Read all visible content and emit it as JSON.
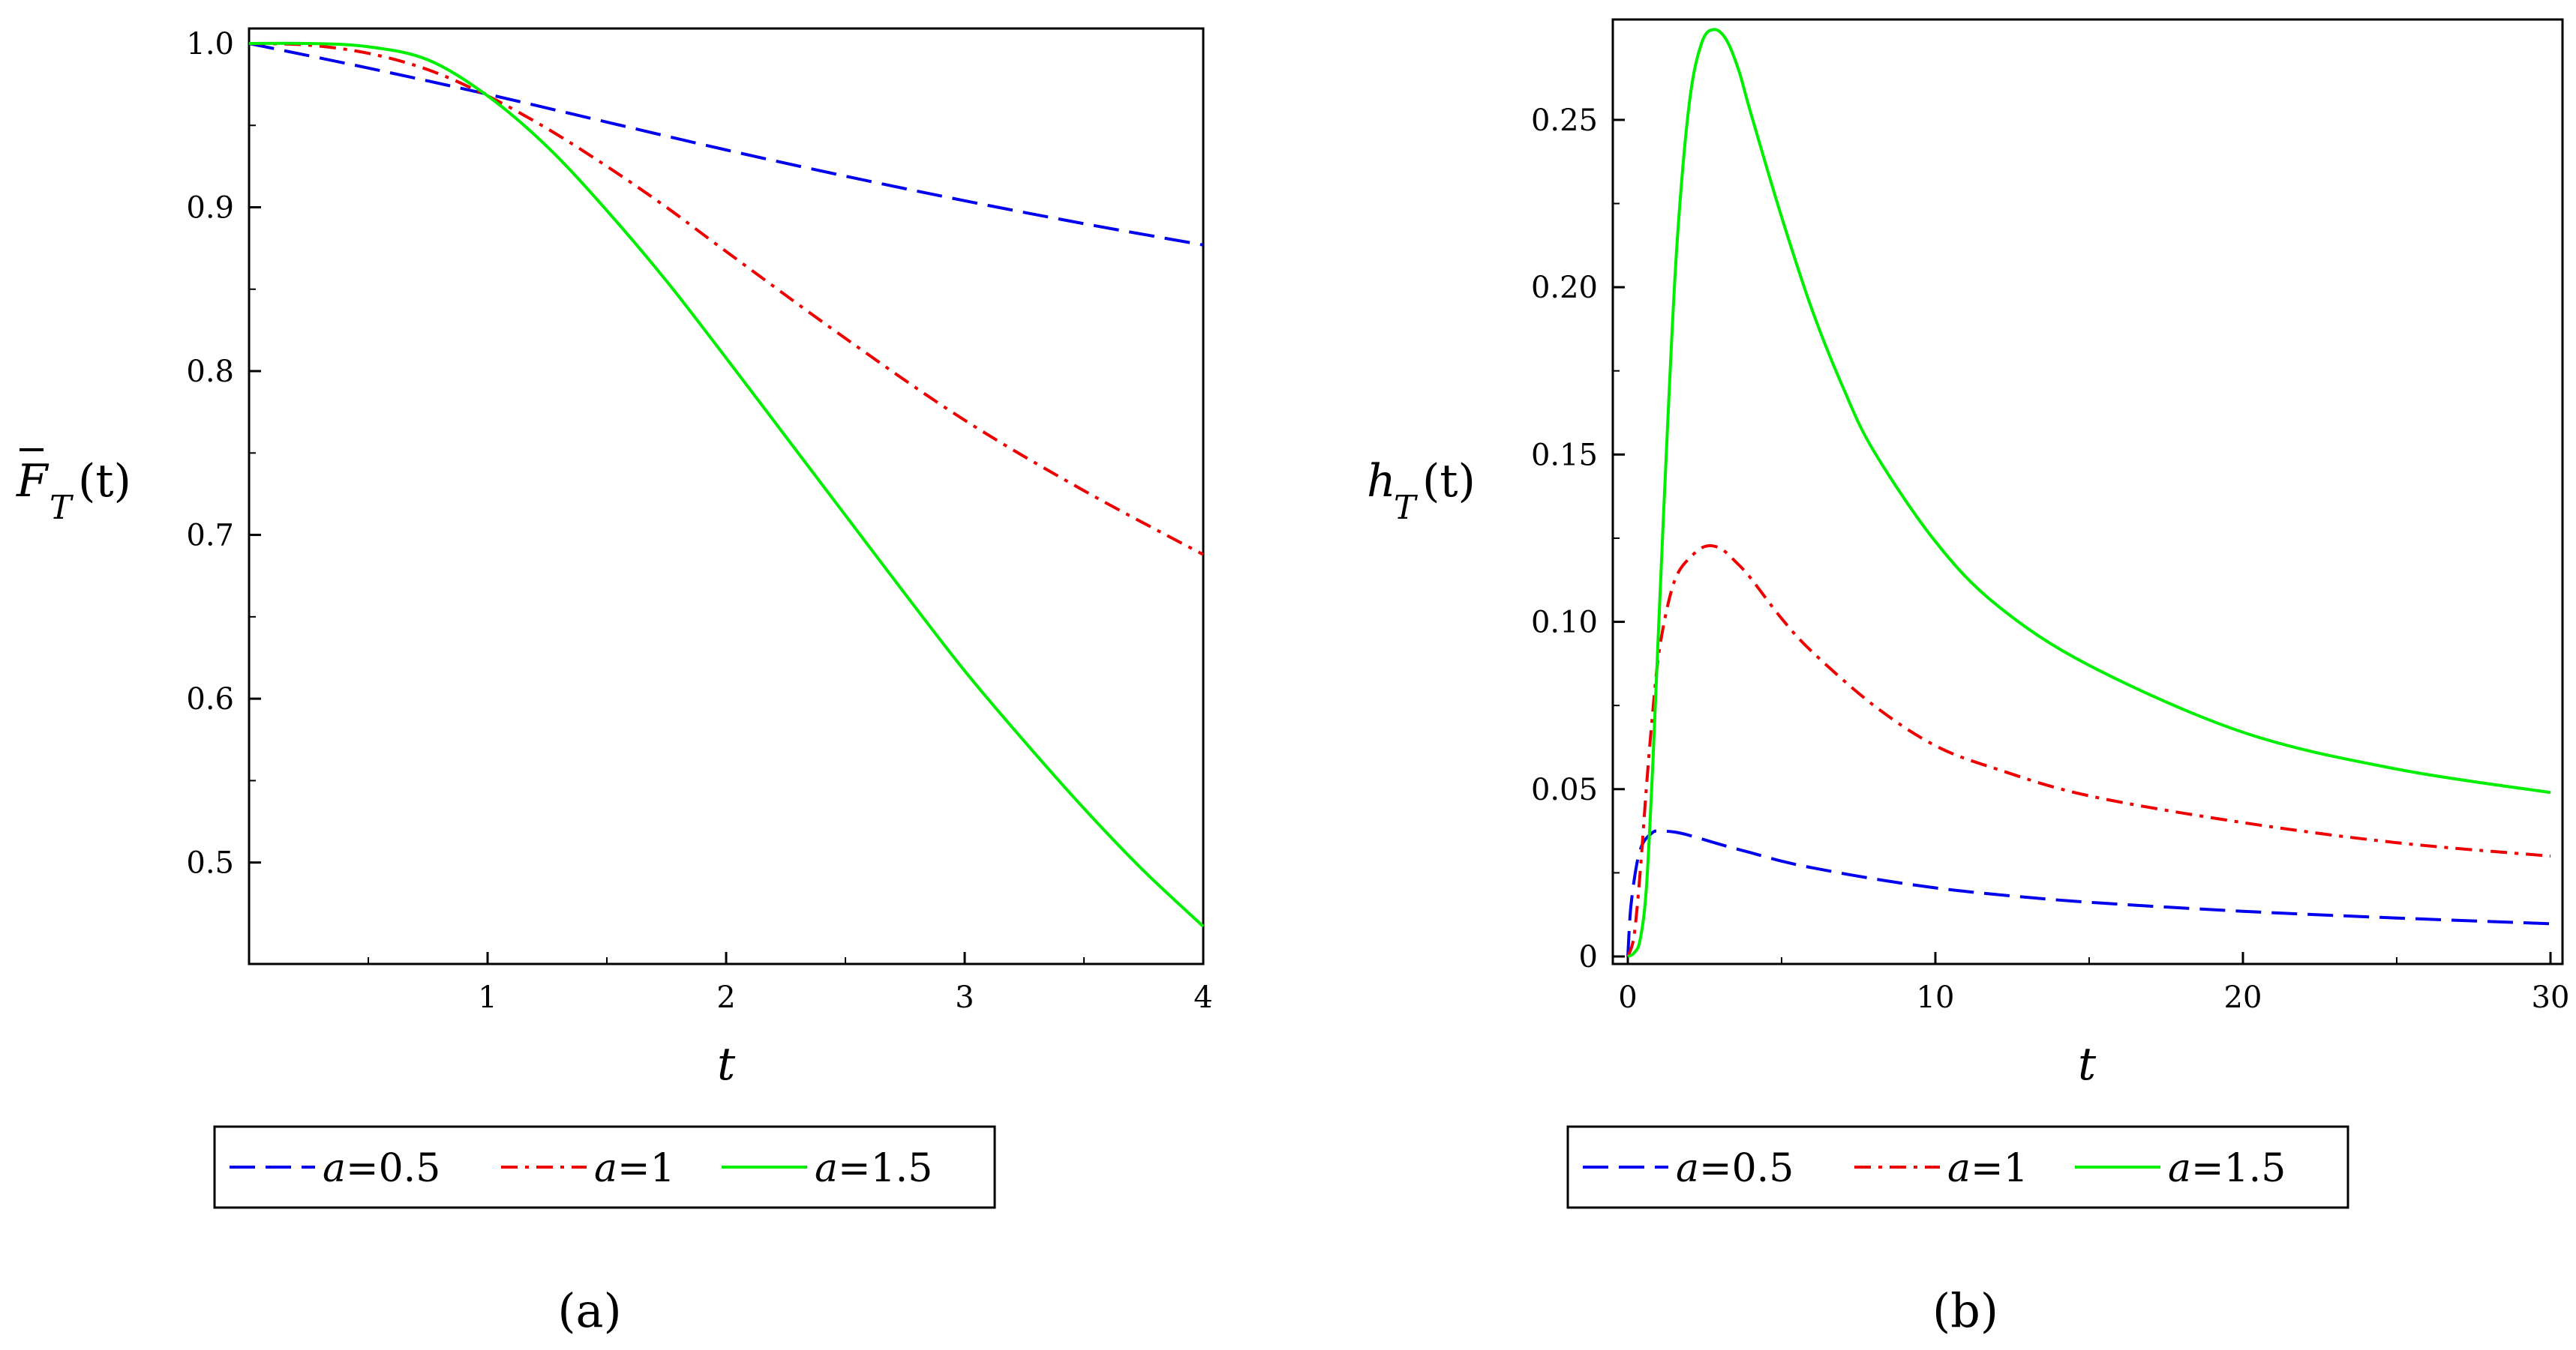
{
  "chart_data": [
    {
      "type": "line",
      "panel_label": "(a)",
      "xlabel": "t",
      "ylabel": {
        "prefix": "F",
        "subscript": "T",
        "suffix": "(t)"
      },
      "xlim": [
        0,
        4
      ],
      "ylim": [
        0.455,
        1.0
      ],
      "xticks": [
        1,
        2,
        3,
        4
      ],
      "yticks": [
        0.5,
        0.6,
        0.7,
        0.8,
        0.9,
        1.0
      ],
      "ytick_labels": [
        "0.5",
        "0.6",
        "0.7",
        "0.8",
        "0.9",
        "1.0"
      ],
      "series": [
        {
          "name": "a=0.5",
          "a_label": "a",
          "value_label": "=0.5",
          "color": "#0000ee",
          "dash": "dashed",
          "x": [
            0,
            0.5,
            1,
            1.5,
            2,
            2.5,
            3,
            3.5,
            4
          ],
          "y": [
            1.0,
            0.985,
            0.969,
            0.952,
            0.935,
            0.919,
            0.904,
            0.89,
            0.877
          ]
        },
        {
          "name": "a=1",
          "a_label": "a",
          "value_label": "=1",
          "color": "#ee0000",
          "dash": "dashdot",
          "x": [
            0,
            0.25,
            0.5,
            0.75,
            1,
            1.25,
            1.5,
            1.75,
            2,
            2.5,
            3,
            3.5,
            4
          ],
          "y": [
            1.0,
            0.999,
            0.994,
            0.984,
            0.968,
            0.948,
            0.925,
            0.9,
            0.873,
            0.82,
            0.77,
            0.727,
            0.688
          ]
        },
        {
          "name": "a=1.5",
          "a_label": "a",
          "value_label": "=1.5",
          "color": "#00ee00",
          "dash": "solid",
          "x": [
            0,
            0.25,
            0.5,
            0.75,
            1,
            1.25,
            1.5,
            1.75,
            2,
            2.25,
            2.5,
            2.75,
            3,
            3.25,
            3.5,
            3.75,
            4
          ],
          "y": [
            1.0,
            1.0,
            0.998,
            0.99,
            0.968,
            0.937,
            0.898,
            0.855,
            0.808,
            0.76,
            0.712,
            0.664,
            0.617,
            0.574,
            0.533,
            0.495,
            0.461
          ]
        }
      ]
    },
    {
      "type": "line",
      "panel_label": "(b)",
      "xlabel": "t",
      "ylabel": {
        "prefix": "h",
        "subscript": "T",
        "suffix": "(t)"
      },
      "xlim": [
        0,
        30
      ],
      "ylim": [
        0,
        0.28
      ],
      "xticks": [
        0,
        10,
        20,
        30
      ],
      "yticks": [
        0,
        0.05,
        0.1,
        0.15,
        0.2,
        0.25
      ],
      "ytick_labels": [
        "0",
        "0.05",
        "0.10",
        "0.15",
        "0.20",
        "0.25"
      ],
      "series": [
        {
          "name": "a=0.5",
          "a_label": "a",
          "value_label": "=0.5",
          "color": "#0000ee",
          "dash": "dashed",
          "x": [
            0,
            0.1,
            0.3,
            0.5,
            0.8,
            1,
            1.5,
            2,
            3,
            4,
            5,
            6,
            8,
            10,
            12,
            15,
            20,
            25,
            30
          ],
          "y": [
            0,
            0.015,
            0.028,
            0.034,
            0.037,
            0.0375,
            0.0372,
            0.0362,
            0.0335,
            0.031,
            0.0285,
            0.0265,
            0.0232,
            0.0205,
            0.0185,
            0.0162,
            0.0135,
            0.0115,
            0.0098
          ]
        },
        {
          "name": "a=1",
          "a_label": "a",
          "value_label": "=1",
          "color": "#ee0000",
          "dash": "dashdot",
          "x": [
            0,
            0.2,
            0.4,
            0.6,
            0.8,
            1,
            1.3,
            1.6,
            2,
            2.5,
            3,
            3.5,
            4,
            5,
            6,
            8,
            10,
            12,
            15,
            20,
            25,
            30
          ],
          "y": [
            0,
            0.006,
            0.025,
            0.05,
            0.072,
            0.09,
            0.105,
            0.114,
            0.119,
            0.1225,
            0.122,
            0.118,
            0.113,
            0.101,
            0.091,
            0.075,
            0.063,
            0.056,
            0.048,
            0.04,
            0.034,
            0.03
          ]
        },
        {
          "name": "a=1.5",
          "a_label": "a",
          "value_label": "=1.5",
          "color": "#00ee00",
          "dash": "solid",
          "x": [
            0,
            0.2,
            0.4,
            0.6,
            0.8,
            1,
            1.3,
            1.6,
            2,
            2.4,
            2.8,
            3.2,
            3.6,
            4,
            5,
            6,
            7,
            8,
            10,
            12,
            15,
            20,
            25,
            30
          ],
          "y": [
            0,
            0.001,
            0.005,
            0.02,
            0.055,
            0.098,
            0.16,
            0.213,
            0.255,
            0.273,
            0.277,
            0.274,
            0.265,
            0.252,
            0.221,
            0.193,
            0.17,
            0.151,
            0.124,
            0.105,
            0.087,
            0.067,
            0.056,
            0.049
          ]
        }
      ]
    }
  ]
}
